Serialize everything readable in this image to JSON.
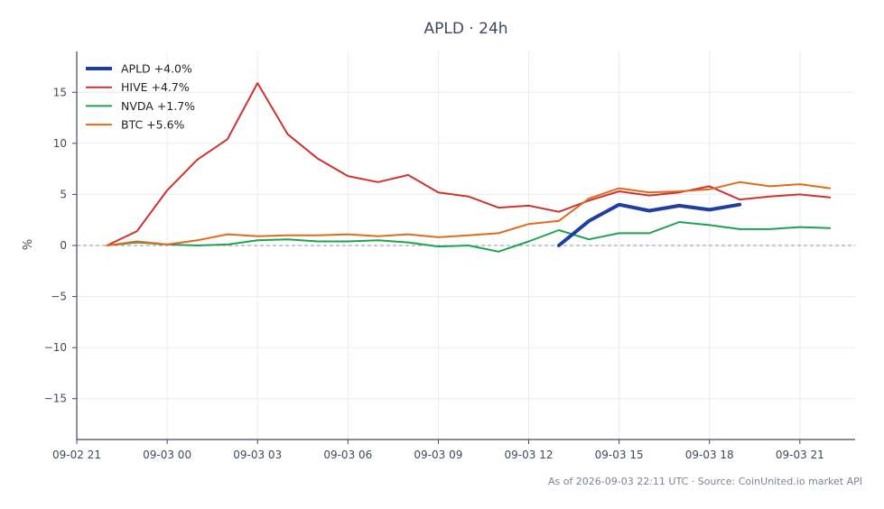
{
  "chart_data": {
    "type": "line",
    "title": "APLD · 24h",
    "xlabel": "",
    "ylabel": "%",
    "x": [
      "09-02 22",
      "09-02 23",
      "09-03 00",
      "09-03 01",
      "09-03 02",
      "09-03 03",
      "09-03 04",
      "09-03 05",
      "09-03 06",
      "09-03 07",
      "09-03 08",
      "09-03 09",
      "09-03 10",
      "09-03 11",
      "09-03 12",
      "09-03 13",
      "09-03 14",
      "09-03 15",
      "09-03 16",
      "09-03 17",
      "09-03 18",
      "09-03 19",
      "09-03 20",
      "09-03 21",
      "09-03 22"
    ],
    "x_ticks": [
      "09-02 21",
      "09-03 00",
      "09-03 03",
      "09-03 06",
      "09-03 09",
      "09-03 12",
      "09-03 15",
      "09-03 18",
      "09-03 21"
    ],
    "y_ticks": [
      15,
      10,
      5,
      0,
      -5,
      -10,
      -15
    ],
    "y_tick_labels": [
      "15",
      "10",
      "5",
      "0",
      "−5",
      "−10",
      "−15"
    ],
    "xlim": [
      "09-02 21",
      "09-03 22:50"
    ],
    "ylim": [
      -19,
      19
    ],
    "grid": true,
    "zero_line": true,
    "legend_position": "top-left",
    "series": [
      {
        "name": "APLD +4.0%",
        "color": "#1f3f9e",
        "values": [
          null,
          null,
          null,
          null,
          null,
          null,
          null,
          null,
          null,
          null,
          null,
          null,
          null,
          null,
          null,
          0.0,
          2.4,
          4.0,
          3.4,
          3.9,
          3.5,
          4.0,
          null,
          null,
          null
        ]
      },
      {
        "name": "HIVE +4.7%",
        "color": "#cc3333",
        "values": [
          0.0,
          1.4,
          5.4,
          8.4,
          10.4,
          15.9,
          10.9,
          8.5,
          6.8,
          6.2,
          6.9,
          5.2,
          4.8,
          3.7,
          3.9,
          3.3,
          4.4,
          5.3,
          4.9,
          5.2,
          5.8,
          4.5,
          4.8,
          5.0,
          4.7
        ]
      },
      {
        "name": "NVDA +1.7%",
        "color": "#22a052",
        "values": [
          0.0,
          0.3,
          0.1,
          0.0,
          0.1,
          0.5,
          0.6,
          0.4,
          0.4,
          0.5,
          0.3,
          -0.1,
          0.0,
          -0.6,
          0.4,
          1.5,
          0.6,
          1.2,
          1.2,
          2.3,
          2.0,
          1.6,
          1.6,
          1.8,
          1.7
        ]
      },
      {
        "name": "BTC +5.6%",
        "color": "#e06a1b",
        "values": [
          0.0,
          0.4,
          0.1,
          0.5,
          1.1,
          0.9,
          1.0,
          1.0,
          1.1,
          0.9,
          1.1,
          0.8,
          1.0,
          1.2,
          2.1,
          2.4,
          4.6,
          5.6,
          5.2,
          5.3,
          5.5,
          6.2,
          5.8,
          6.0,
          5.6
        ]
      }
    ]
  },
  "footer": "As of 2026-09-03 22:11 UTC · Source: CoinUnited.io market API"
}
